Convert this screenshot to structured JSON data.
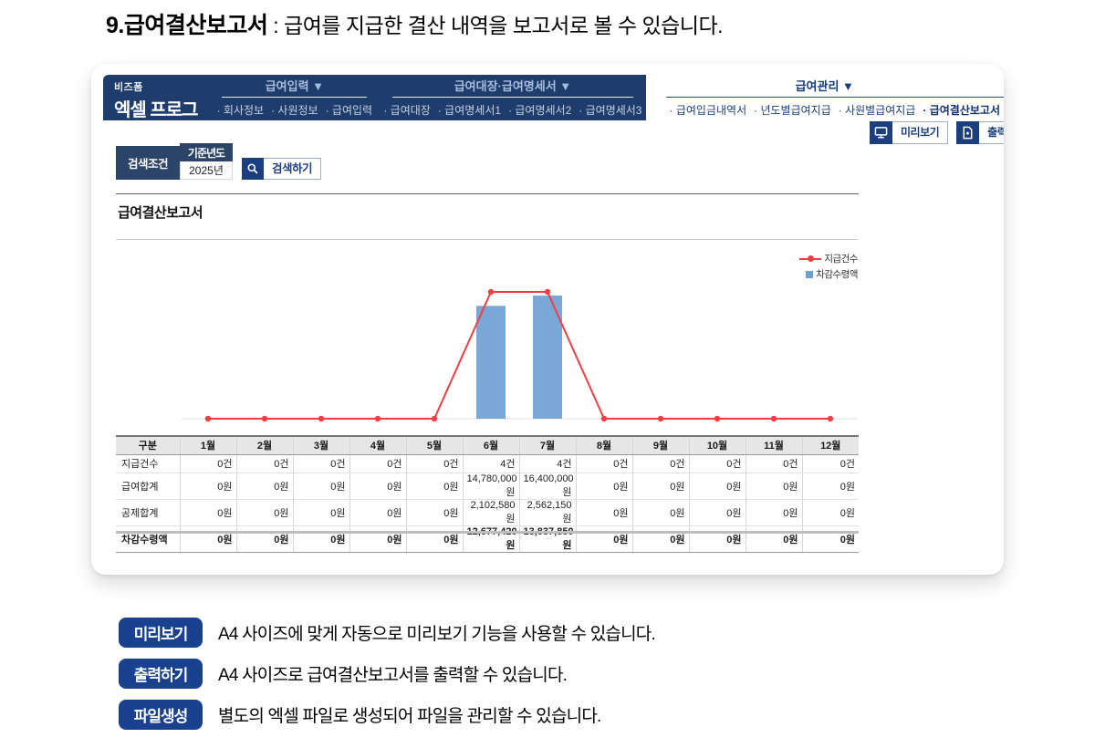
{
  "page": {
    "heading_bold": "9.급여결산보고서",
    "heading_rest": " : 급여를 지급한 결산 내역을 보고서로 볼 수 있습니다."
  },
  "app": {
    "logo_small": "비즈폼",
    "logo_main": "엑셀 프로그램",
    "menus": [
      {
        "title": "급여입력 ▼",
        "items": [
          "회사정보",
          "사원정보",
          "급여입력"
        ],
        "active": false
      },
      {
        "title": "급여대장·급여명세서 ▼",
        "items": [
          "급여대장",
          "급여명세서1",
          "급여명세서2",
          "급여명세서3"
        ],
        "active": false
      },
      {
        "title": "급여관리 ▼",
        "items": [
          "급여입금내역서",
          "년도별급여지급",
          "사원별급여지급",
          "급여결산보고서"
        ],
        "active": true
      }
    ],
    "toolbar": {
      "preview": "미리보기",
      "print": "출력하기"
    },
    "search": {
      "label": "검색조건",
      "field_label": "기준년도",
      "field_value": "2025년",
      "button": "검색하기"
    },
    "report_title": "급여결산보고서"
  },
  "chart_data": {
    "type": "line+bar",
    "categories": [
      "1월",
      "2월",
      "3월",
      "4월",
      "5월",
      "6월",
      "7월",
      "8월",
      "9월",
      "10월",
      "11월",
      "12월"
    ],
    "series": [
      {
        "name": "지급건수",
        "type": "line",
        "color": "#ef3e44",
        "unit": "건",
        "values": [
          0,
          0,
          0,
          0,
          0,
          4,
          4,
          0,
          0,
          0,
          0,
          0
        ]
      },
      {
        "name": "차감수령액",
        "type": "bar",
        "color": "#7ba7d6",
        "unit": "원",
        "values": [
          0,
          0,
          0,
          0,
          0,
          12677420,
          13837850,
          0,
          0,
          0,
          0,
          0
        ]
      }
    ],
    "title": "급여결산보고서",
    "xlabel": "",
    "ylabel": "",
    "legend_position": "top-right",
    "grid": false
  },
  "table": {
    "corner_header": "구분",
    "months": [
      "1월",
      "2월",
      "3월",
      "4월",
      "5월",
      "6월",
      "7월",
      "8월",
      "9월",
      "10월",
      "11월",
      "12월"
    ],
    "rows": [
      {
        "label": "지급건수",
        "bold": false,
        "values": [
          "0건",
          "0건",
          "0건",
          "0건",
          "0건",
          "4건",
          "4건",
          "0건",
          "0건",
          "0건",
          "0건",
          "0건"
        ]
      },
      {
        "label": "급여합계",
        "bold": false,
        "values": [
          "0원",
          "0원",
          "0원",
          "0원",
          "0원",
          "14,780,000원",
          "16,400,000원",
          "0원",
          "0원",
          "0원",
          "0원",
          "0원"
        ]
      },
      {
        "label": "공제합계",
        "bold": false,
        "values": [
          "0원",
          "0원",
          "0원",
          "0원",
          "0원",
          "2,102,580원",
          "2,562,150원",
          "0원",
          "0원",
          "0원",
          "0원",
          "0원"
        ]
      },
      {
        "label": "차감수령액",
        "bold": true,
        "values": [
          "0원",
          "0원",
          "0원",
          "0원",
          "0원",
          "12,677,420원",
          "13,837,850원",
          "0원",
          "0원",
          "0원",
          "0원",
          "0원"
        ]
      }
    ]
  },
  "notes": [
    {
      "button": "미리보기",
      "text": "A4 사이즈에 맞게 자동으로 미리보기 기능을 사용할 수 있습니다."
    },
    {
      "button": "출력하기",
      "text": "A4 사이즈로 급여결산보고서를 출력할 수 있습니다."
    },
    {
      "button": "파일생성",
      "text": "별도의 엑셀 파일로 생성되어 파일을 관리할 수 있습니다."
    }
  ],
  "colors": {
    "nav_navy": "#1e3c6c",
    "accent_navy": "#1b3e7e",
    "note_button_blue": "#19418e",
    "line_red": "#ef3e44",
    "bar_blue": "#7ba7d6"
  }
}
